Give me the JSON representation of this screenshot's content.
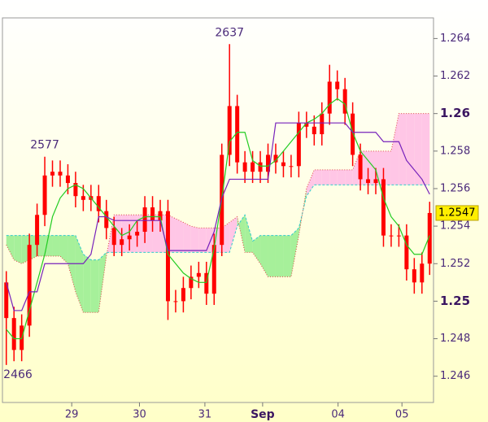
{
  "chart_data": {
    "type": "candlestick",
    "xlim": [
      -0.5,
      55.5
    ],
    "ylim": [
      1.2446,
      1.2651
    ],
    "yticks": [
      1.246,
      1.248,
      {
        "value": 1.25,
        "label": "1.25",
        "major": true
      },
      1.252,
      1.254,
      1.256,
      1.258,
      {
        "value": 1.26,
        "label": "1.26",
        "major": true
      },
      1.262,
      1.264
    ],
    "xticks": [
      {
        "value": 8.5,
        "label": "29"
      },
      {
        "value": 17.3,
        "label": "30"
      },
      {
        "value": 25.8,
        "label": "31"
      },
      {
        "value": 33.3,
        "label": "Sep",
        "major": true
      },
      {
        "value": 43.1,
        "label": "04"
      },
      {
        "value": 51.4,
        "label": "05"
      }
    ],
    "candle_color": "#ff0000",
    "open": [
      1.251,
      1.2491,
      1.2474,
      1.2487,
      1.253,
      1.2546,
      1.2567,
      1.2569,
      1.2567,
      1.2563,
      1.2556,
      1.2554,
      1.2556,
      1.2548,
      1.2539,
      1.253,
      1.2533,
      1.2535,
      1.2537,
      1.255,
      1.2543,
      1.2548,
      1.25,
      1.25,
      1.2507,
      1.2513,
      1.2515,
      1.2504,
      1.253,
      1.2578,
      1.2604,
      1.2574,
      1.2569,
      1.2574,
      1.2569,
      1.2578,
      1.2574,
      1.2572,
      1.2572,
      1.2595,
      1.2593,
      1.2589,
      1.26,
      1.2617,
      1.2613,
      1.26,
      1.2578,
      1.2565,
      1.2563,
      1.2565,
      1.2535,
      1.2535,
      1.2535,
      1.2517,
      1.251,
      1.252
    ],
    "high": [
      1.2516,
      1.2497,
      1.2493,
      1.2536,
      1.2552,
      1.2577,
      1.2575,
      1.2575,
      1.2573,
      1.2569,
      1.2562,
      1.2562,
      1.2562,
      1.2554,
      1.2545,
      1.2539,
      1.2541,
      1.2543,
      1.2556,
      1.2556,
      1.2554,
      1.2554,
      1.2506,
      1.2513,
      1.2519,
      1.2521,
      1.2521,
      1.2536,
      1.2584,
      1.2637,
      1.261,
      1.258,
      1.258,
      1.258,
      1.2584,
      1.2584,
      1.258,
      1.2578,
      1.2601,
      1.2601,
      1.2599,
      1.2606,
      1.2626,
      1.2623,
      1.2619,
      1.2606,
      1.2584,
      1.2571,
      1.2571,
      1.2571,
      1.2541,
      1.2541,
      1.2541,
      1.2523,
      1.2526,
      1.2553
    ],
    "low": [
      1.2466,
      1.2468,
      1.2468,
      1.2481,
      1.2524,
      1.254,
      1.2561,
      1.2561,
      1.2557,
      1.255,
      1.2548,
      1.2548,
      1.2542,
      1.2533,
      1.2524,
      1.2524,
      1.2527,
      1.2529,
      1.2531,
      1.2537,
      1.2537,
      1.249,
      1.2494,
      1.2494,
      1.2501,
      1.2507,
      1.2498,
      1.2498,
      1.2524,
      1.2572,
      1.2568,
      1.2563,
      1.2563,
      1.2563,
      1.2563,
      1.2568,
      1.2566,
      1.2566,
      1.2566,
      1.2587,
      1.2583,
      1.2583,
      1.2594,
      1.2607,
      1.2594,
      1.2572,
      1.2559,
      1.2557,
      1.2557,
      1.2529,
      1.2529,
      1.2529,
      1.2511,
      1.2504,
      1.2504,
      1.2514
    ],
    "close": [
      1.2491,
      1.2474,
      1.2487,
      1.253,
      1.2546,
      1.2567,
      1.2569,
      1.2567,
      1.2563,
      1.2556,
      1.2554,
      1.2556,
      1.2548,
      1.2539,
      1.253,
      1.2533,
      1.2535,
      1.2537,
      1.255,
      1.2543,
      1.2548,
      1.25,
      1.25,
      1.2507,
      1.2513,
      1.2515,
      1.2504,
      1.253,
      1.2578,
      1.2604,
      1.2574,
      1.2569,
      1.2574,
      1.2569,
      1.2578,
      1.2574,
      1.2572,
      1.2572,
      1.2595,
      1.2593,
      1.2589,
      1.26,
      1.2617,
      1.2613,
      1.26,
      1.2578,
      1.2565,
      1.2563,
      1.2565,
      1.2535,
      1.2535,
      1.2535,
      1.2517,
      1.251,
      1.252,
      1.2547
    ],
    "span_a": [
      1.2535,
      1.2535,
      1.2535,
      1.2535,
      1.2535,
      1.2535,
      1.2535,
      1.2535,
      1.2535,
      1.2535,
      1.2525,
      1.2522,
      1.2522,
      1.2526,
      1.2526,
      1.2526,
      1.2526,
      1.2526,
      1.2526,
      1.2526,
      1.2526,
      1.2526,
      1.2526,
      1.2526,
      1.2526,
      1.2526,
      1.2526,
      1.2526,
      1.2526,
      1.2526,
      1.254,
      1.2546,
      1.2532,
      1.2535,
      1.2535,
      1.2535,
      1.2535,
      1.2535,
      1.2539,
      1.2556,
      1.2562,
      1.2562,
      1.2562,
      1.2562,
      1.2562,
      1.2562,
      1.2562,
      1.2562,
      1.2562,
      1.2562,
      1.2562,
      1.2562,
      1.2562,
      1.2562,
      1.2562,
      1.2562
    ],
    "span_b": [
      1.253,
      1.2522,
      1.252,
      1.2522,
      1.2524,
      1.2524,
      1.2524,
      1.2524,
      1.252,
      1.2505,
      1.2494,
      1.2494,
      1.2494,
      1.2524,
      1.2546,
      1.2546,
      1.2546,
      1.2546,
      1.2546,
      1.2546,
      1.2546,
      1.2546,
      1.2544,
      1.2542,
      1.254,
      1.2539,
      1.2539,
      1.2539,
      1.2539,
      1.2542,
      1.2545,
      1.2526,
      1.2526,
      1.252,
      1.2513,
      1.2513,
      1.2513,
      1.2513,
      1.2535,
      1.256,
      1.257,
      1.257,
      1.257,
      1.257,
      1.257,
      1.257,
      1.258,
      1.258,
      1.258,
      1.258,
      1.258,
      1.26,
      1.26,
      1.26,
      1.26,
      1.26
    ],
    "span_a_color": "#33cccc",
    "span_b_color": "#dd4444",
    "cloud_colors": {
      "up": "#a6f09a",
      "down": "#ffc6e6"
    },
    "lines": [
      {
        "color": "#22cc22",
        "values": [
          1.2485,
          1.248,
          1.248,
          1.2495,
          1.251,
          1.2525,
          1.2545,
          1.2555,
          1.256,
          1.2562,
          1.256,
          1.2555,
          1.255,
          1.2545,
          1.254,
          1.2535,
          1.2537,
          1.2543,
          1.2545,
          1.2545,
          1.2545,
          1.2525,
          1.252,
          1.2515,
          1.2512,
          1.251,
          1.251,
          1.2528,
          1.2555,
          1.2585,
          1.259,
          1.259,
          1.2575,
          1.2572,
          1.2572,
          1.2575,
          1.258,
          1.2585,
          1.259,
          1.2595,
          1.2597,
          1.26,
          1.2605,
          1.2608,
          1.2605,
          1.259,
          1.258,
          1.2575,
          1.257,
          1.2555,
          1.2545,
          1.254,
          1.253,
          1.2525,
          1.2525,
          1.2535
        ]
      },
      {
        "color": "#7722bb",
        "values": [
          1.251,
          1.2495,
          1.2495,
          1.2505,
          1.2505,
          1.252,
          1.252,
          1.252,
          1.252,
          1.252,
          1.252,
          1.2525,
          1.2545,
          1.2545,
          1.2543,
          1.2543,
          1.2543,
          1.2543,
          1.2543,
          1.2543,
          1.2543,
          1.2527,
          1.2527,
          1.2527,
          1.2527,
          1.2527,
          1.2527,
          1.2537,
          1.2555,
          1.2565,
          1.2565,
          1.2565,
          1.2565,
          1.2565,
          1.2565,
          1.2595,
          1.2595,
          1.2595,
          1.2595,
          1.2595,
          1.2595,
          1.2595,
          1.2595,
          1.2595,
          1.2595,
          1.259,
          1.259,
          1.259,
          1.259,
          1.2585,
          1.2585,
          1.2585,
          1.2575,
          1.257,
          1.2565,
          1.2557
        ]
      }
    ],
    "annotations": [
      {
        "text": "2637",
        "candle": 29,
        "at": "high"
      },
      {
        "text": "2577",
        "candle": 5,
        "at": "high"
      },
      {
        "text": "2466",
        "candle": 0,
        "at": "low"
      }
    ],
    "last_price_color": "#ffee00"
  }
}
